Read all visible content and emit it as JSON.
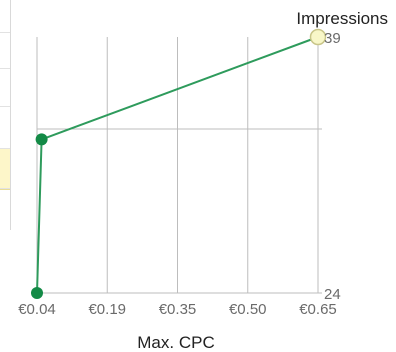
{
  "chart_data": {
    "type": "line",
    "xlabel": "Max. CPC",
    "x_ticks": [
      "€0.04",
      "€0.19",
      "€0.35",
      "€0.50",
      "€0.65"
    ],
    "xlim": [
      0.04,
      0.65
    ],
    "ylim": [
      24,
      39
    ],
    "y_tick_labels": [
      "24",
      "39"
    ],
    "series": [
      {
        "name": "Impressions",
        "x": [
          0.04,
          0.05,
          0.65
        ],
        "y": [
          24,
          33,
          39
        ]
      }
    ],
    "highlighted_point": {
      "x": 0.65,
      "y": 39
    },
    "grid": true,
    "colors": {
      "line": "#2e9b5c",
      "marker": "#138a46",
      "highlight_fill": "#f8f7c8",
      "highlight_stroke": "#c9c68a",
      "grid": "#bdbdbd",
      "tick_text": "#6a6a6a"
    }
  }
}
